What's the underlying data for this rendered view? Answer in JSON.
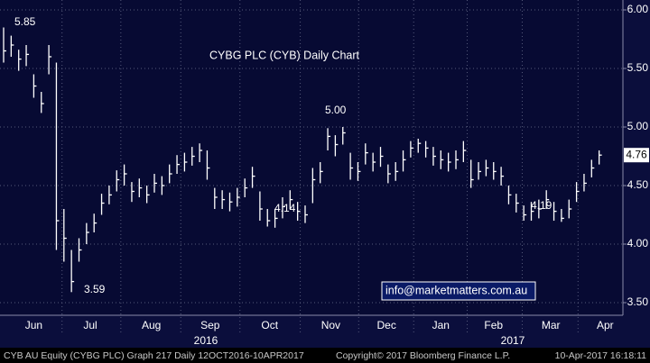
{
  "chart_data": {
    "type": "hlc",
    "title": "CYBG PLC (CYB) Daily Chart",
    "watermark": "info@marketmatters.com.au",
    "annotations": [
      "5.85",
      "3.59",
      "4.14",
      "5.00",
      "4.19"
    ],
    "years": [
      "2016",
      "2017"
    ],
    "footer": [
      "CYB AU Equity (CYBG PLC) Graph 217  Daily 12OCT2016-10APR2017",
      "Copyright© 2017 Bloomberg Finance L.P.",
      "10-Apr-2017 16:18:11"
    ],
    "color": "#ffffff",
    "title_color": "#7fe07f",
    "grid": true,
    "high": [
      5.85,
      5.78,
      5.66,
      5.7,
      5.45,
      5.3,
      5.7,
      5.55,
      4.3,
      3.95,
      4.05,
      4.18,
      4.26,
      4.43,
      4.5,
      4.63,
      4.68,
      4.53,
      4.56,
      4.5,
      4.6,
      4.58,
      4.68,
      4.76,
      4.78,
      4.83,
      4.86,
      4.8,
      4.48,
      4.46,
      4.44,
      4.48,
      4.56,
      4.66,
      4.45,
      4.3,
      4.3,
      4.4,
      4.46,
      4.36,
      4.33,
      4.65,
      4.7,
      4.99,
      4.93,
      5.0,
      4.78,
      4.7,
      4.86,
      4.78,
      4.83,
      4.68,
      4.7,
      4.8,
      4.88,
      4.9,
      4.88,
      4.83,
      4.8,
      4.78,
      4.8,
      4.88,
      4.72,
      4.7,
      4.72,
      4.7,
      4.66,
      4.5,
      4.43,
      4.33,
      4.36,
      4.38,
      4.46,
      4.36,
      4.3,
      4.38,
      4.53,
      4.6,
      4.72,
      4.8
    ],
    "low": [
      5.55,
      5.6,
      5.48,
      5.52,
      5.25,
      5.12,
      5.45,
      3.95,
      3.85,
      3.59,
      3.85,
      4.0,
      4.1,
      4.25,
      4.34,
      4.45,
      4.5,
      4.36,
      4.4,
      4.35,
      4.44,
      4.42,
      4.52,
      4.6,
      4.62,
      4.67,
      4.7,
      4.55,
      4.3,
      4.3,
      4.28,
      4.32,
      4.4,
      4.48,
      4.2,
      4.15,
      4.14,
      4.22,
      4.3,
      4.2,
      4.18,
      4.35,
      4.52,
      4.8,
      4.75,
      4.85,
      4.55,
      4.54,
      4.68,
      4.62,
      4.66,
      4.52,
      4.54,
      4.62,
      4.74,
      4.78,
      4.74,
      4.67,
      4.64,
      4.62,
      4.64,
      4.7,
      4.48,
      4.55,
      4.58,
      4.55,
      4.5,
      4.34,
      4.27,
      4.2,
      4.2,
      4.22,
      4.3,
      4.2,
      4.19,
      4.22,
      4.36,
      4.45,
      4.57,
      4.68
    ],
    "close": [
      5.65,
      5.7,
      5.58,
      5.62,
      5.35,
      5.2,
      5.6,
      4.2,
      4.05,
      3.68,
      3.95,
      4.1,
      4.18,
      4.35,
      4.42,
      4.55,
      4.6,
      4.45,
      4.48,
      4.42,
      4.52,
      4.5,
      4.6,
      4.68,
      4.7,
      4.75,
      4.8,
      4.65,
      4.4,
      4.38,
      4.36,
      4.4,
      4.48,
      4.58,
      4.3,
      4.2,
      4.22,
      4.32,
      4.38,
      4.28,
      4.25,
      4.55,
      4.62,
      4.92,
      4.85,
      4.95,
      4.65,
      4.62,
      4.78,
      4.7,
      4.75,
      4.6,
      4.62,
      4.72,
      4.82,
      4.86,
      4.82,
      4.75,
      4.72,
      4.7,
      4.72,
      4.8,
      4.55,
      4.62,
      4.65,
      4.62,
      4.58,
      4.42,
      4.35,
      4.25,
      4.28,
      4.3,
      4.38,
      4.28,
      4.22,
      4.3,
      4.45,
      4.52,
      4.65,
      4.76
    ],
    "ylim": [
      3.5,
      6.0
    ],
    "yticks": [
      {
        "value": 3.5,
        "label": "3.50"
      },
      {
        "value": 4,
        "label": "4.00"
      },
      {
        "value": 4.5,
        "label": "4.50"
      },
      {
        "value": 5,
        "label": "5.00"
      },
      {
        "value": 5.5,
        "label": "5.50"
      },
      {
        "value": 6,
        "label": "6.00"
      }
    ],
    "xticks": [
      {
        "value": 4,
        "label": "Jun"
      },
      {
        "value": 11.5,
        "label": "Jul"
      },
      {
        "value": 19.6,
        "label": "Aug"
      },
      {
        "value": 27.4,
        "label": "Sep"
      },
      {
        "value": 35.3,
        "label": "Oct"
      },
      {
        "value": 43.4,
        "label": "Nov"
      },
      {
        "value": 50.8,
        "label": "Dec"
      },
      {
        "value": 58,
        "label": "Jan"
      },
      {
        "value": 65,
        "label": "Feb"
      },
      {
        "value": 72.6,
        "label": "Mar"
      },
      {
        "value": 79.8,
        "label": "Apr"
      }
    ]
  }
}
